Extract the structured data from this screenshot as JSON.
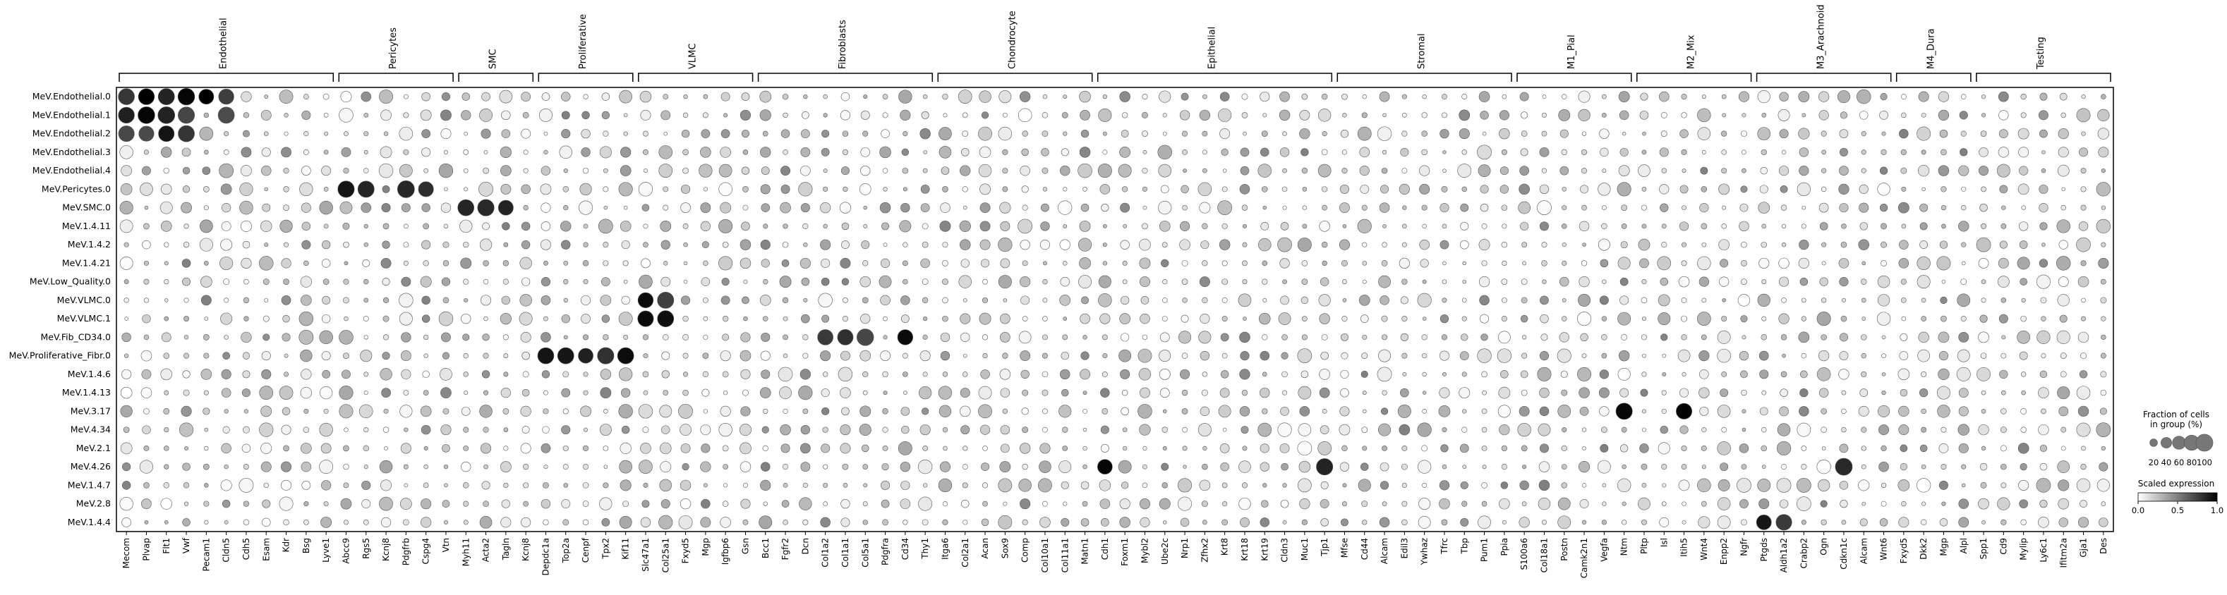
{
  "chart_data": {
    "type": "dotplot",
    "title": "",
    "rows": [
      "MeV.Endothelial.0",
      "MeV.Endothelial.1",
      "MeV.Endothelial.2",
      "MeV.Endothelial.3",
      "MeV.Endothelial.4",
      "MeV.Pericytes.0",
      "MeV.SMC.0",
      "MeV.1.4.11",
      "MeV.1.4.2",
      "MeV.1.4.21",
      "MeV.Low_Quality.0",
      "MeV.VLMC.0",
      "MeV.VLMC.1",
      "MeV.Fib_CD34.0",
      "MeV.Proliferative_Fibr.0",
      "MeV.1.4.6",
      "MeV.1.4.13",
      "MeV.3.17",
      "MeV.4.34",
      "MeV.2.1",
      "MeV.4.26",
      "MeV.1.4.7",
      "MeV.2.8",
      "MeV.1.4.4"
    ],
    "groups": [
      {
        "name": "Endothelial",
        "genes": [
          "Mecom",
          "Plvap",
          "Flt1",
          "Vwf",
          "Pecam1",
          "Cldn5",
          "Cdh5",
          "Esam",
          "Kdr",
          "Bsg",
          "Lyve1"
        ]
      },
      {
        "name": "Pericytes",
        "genes": [
          "Abcc9",
          "Rgs5",
          "Kcnj8",
          "Pdgfrb",
          "Cspg4",
          "Vtn"
        ]
      },
      {
        "name": "SMC",
        "genes": [
          "Myh11",
          "Acta2",
          "Tagln",
          "Kcnj8"
        ]
      },
      {
        "name": "Proliferative",
        "genes": [
          "Depdc1a",
          "Top2a",
          "Cenpf",
          "Tpx2",
          "Kif11"
        ]
      },
      {
        "name": "VLMC",
        "genes": [
          "Slc47a1",
          "Col25a1",
          "Fxyd5",
          "Mgp",
          "Igfbp6",
          "Gsn"
        ]
      },
      {
        "name": "Fibroblasts",
        "genes": [
          "Bcc1",
          "Fgfr2",
          "Dcn",
          "Col1a2",
          "Col1a1",
          "Col5a1",
          "Pdgfra",
          "Cd34",
          "Thy1"
        ]
      },
      {
        "name": "Chondrocyte",
        "genes": [
          "Itga6",
          "Col2a1",
          "Acan",
          "Sox9",
          "Comp",
          "Col10a1",
          "Col11a1",
          "Matn1"
        ]
      },
      {
        "name": "Epithelial",
        "genes": [
          "Cdh1",
          "Foxm1",
          "Mybl2",
          "Ube2c",
          "Nrp1",
          "Zfhx2",
          "Krt8",
          "Krt18",
          "Krt19",
          "Cldn3",
          "Muc1",
          "Tjp1"
        ]
      },
      {
        "name": "Stromal",
        "genes": [
          "Mfse",
          "Cd44",
          "Alcam",
          "Edil3",
          "Ywhaz",
          "Tfrc",
          "Tbp",
          "Pum1",
          "Ppia"
        ]
      },
      {
        "name": "M1_Pial",
        "genes": [
          "S100a6",
          "Col18a1",
          "Postn",
          "Camk2n1",
          "Vegfa",
          "Ntm"
        ]
      },
      {
        "name": "M2_Mix",
        "genes": [
          "Pltp",
          "Isl",
          "Itih5",
          "Wnt4",
          "Enpp2",
          "Ngfr"
        ]
      },
      {
        "name": "M3_Arachnoid",
        "genes": [
          "Ptgds",
          "Aldh1a2",
          "Crabp2",
          "Ogn",
          "Cdkn1c",
          "Alcam",
          "Wnt6"
        ]
      },
      {
        "name": "M4_Dura",
        "genes": [
          "Fxyd5",
          "Dkk2",
          "Mgp",
          "Alpl"
        ]
      },
      {
        "name": "Testing",
        "genes": [
          "Spp1",
          "Cd9",
          "Mylip",
          "Ly6c1",
          "Ifitm2a",
          "Gja1",
          "Des"
        ]
      }
    ],
    "strong_dots": [
      {
        "row": "MeV.Endothelial.0",
        "genes": [
          "Mecom",
          "Plvap",
          "Flt1",
          "Vwf",
          "Pecam1",
          "Cldn5"
        ]
      },
      {
        "row": "MeV.Endothelial.1",
        "genes": [
          "Mecom",
          "Plvap",
          "Flt1",
          "Vwf",
          "Cldn5"
        ]
      },
      {
        "row": "MeV.Endothelial.2",
        "genes": [
          "Mecom",
          "Plvap",
          "Flt1",
          "Vwf"
        ]
      },
      {
        "row": "MeV.Pericytes.0",
        "genes": [
          "Abcc9",
          "Rgs5",
          "Pdgfrb",
          "Cspg4"
        ]
      },
      {
        "row": "MeV.SMC.0",
        "genes": [
          "Myh11",
          "Acta2",
          "Tagln"
        ]
      },
      {
        "row": "MeV.VLMC.0",
        "genes": [
          "Slc47a1",
          "Col25a1"
        ]
      },
      {
        "row": "MeV.VLMC.1",
        "genes": [
          "Slc47a1",
          "Col25a1"
        ]
      },
      {
        "row": "MeV.Fib_CD34.0",
        "genes": [
          "Col1a2",
          "Col1a1",
          "Col5a1",
          "Cd34"
        ]
      },
      {
        "row": "MeV.Proliferative_Fibr.0",
        "genes": [
          "Depdc1a",
          "Top2a",
          "Cenpf",
          "Tpx2",
          "Kif11"
        ]
      },
      {
        "row": "MeV.3.17",
        "genes": [
          "Ntm",
          "Itih5"
        ]
      },
      {
        "row": "MeV.4.26",
        "genes": [
          "Cdh1",
          "Tjp1",
          "Cdkn1c"
        ]
      },
      {
        "row": "MeV.1.4.4",
        "genes": [
          "Ptgds",
          "Aldh1a2"
        ]
      }
    ],
    "legend_size": {
      "title_line1": "Fraction of cells",
      "title_line2": "in group (%)",
      "ticks": [
        "20",
        "40",
        "60",
        "80",
        "100"
      ],
      "values": [
        20,
        40,
        60,
        80,
        100
      ]
    },
    "legend_color": {
      "title": "Scaled expression",
      "ticks": [
        "0.0",
        "0.5",
        "1.0"
      ],
      "range": [
        0,
        1
      ],
      "colors": [
        "#ffffff",
        "#000000"
      ]
    },
    "colors": {
      "dot_max": "#000000",
      "dot_min": "#ffffff",
      "edge": "#555555",
      "frame": "#000000"
    }
  }
}
